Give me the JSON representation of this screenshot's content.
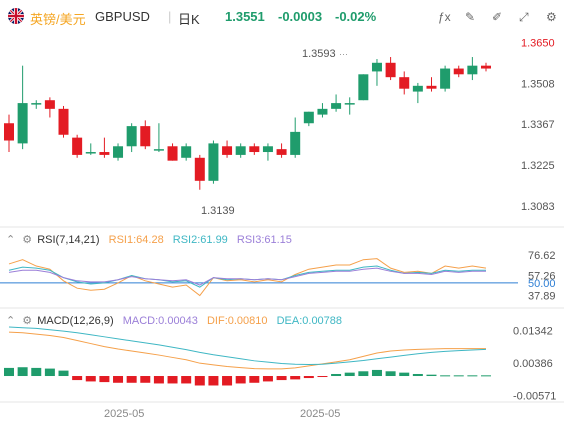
{
  "header": {
    "pair_name": "英镑/美元",
    "symbol": "GBPUSD",
    "timeframe": "日K",
    "price": "1.3551",
    "change": "-0.0003",
    "change_pct": "-0.02%",
    "flag_icon": "uk-flag-icon",
    "actions": [
      {
        "name": "indicator-icon",
        "glyph": "ƒx"
      },
      {
        "name": "draw-tools-icon",
        "glyph": "✎"
      },
      {
        "name": "brush-icon",
        "glyph": "✐"
      },
      {
        "name": "expand-icon",
        "glyph": "⤢"
      },
      {
        "name": "settings-icon",
        "glyph": "⚙"
      }
    ]
  },
  "colors": {
    "up": "#1f9c6c",
    "down": "#e31b23",
    "accent": "#f5a623",
    "rsi1": "#f5a04a",
    "rsi2": "#3fb7c4",
    "rsi3": "#9b7fd8",
    "level50": "#2f7fd4"
  },
  "price_axis": [
    "1.3650",
    "1.3508",
    "1.3367",
    "1.3225",
    "1.3083"
  ],
  "annotations": {
    "high": "1.3593",
    "low": "1.3139"
  },
  "rsi": {
    "title": "RSI(7,14,21)",
    "rsi1": "RSI1:64.28",
    "rsi2": "RSI2:61.99",
    "rsi3": "RSI3:61.15",
    "axis": [
      "76.62",
      "57.26",
      "50.00",
      "37.89"
    ]
  },
  "macd": {
    "title": "MACD(12,26,9)",
    "macd": "MACD:0.00043",
    "dif": "DIF:0.00810",
    "dea": "DEA:0.00788",
    "axis": [
      "0.01342",
      "0.00386",
      "-0.00571"
    ]
  },
  "time_axis": [
    "2025-05",
    "2025-05"
  ],
  "chart_data": {
    "type": "candlestick",
    "ylim": [
      1.302,
      1.368
    ],
    "candles": [
      {
        "o": 1.337,
        "h": 1.34,
        "l": 1.327,
        "c": 1.331
      },
      {
        "o": 1.33,
        "h": 1.357,
        "l": 1.328,
        "c": 1.344
      },
      {
        "o": 1.344,
        "h": 1.345,
        "l": 1.342,
        "c": 1.344
      },
      {
        "o": 1.345,
        "h": 1.346,
        "l": 1.339,
        "c": 1.342
      },
      {
        "o": 1.342,
        "h": 1.343,
        "l": 1.332,
        "c": 1.333
      },
      {
        "o": 1.332,
        "h": 1.333,
        "l": 1.325,
        "c": 1.326
      },
      {
        "o": 1.327,
        "h": 1.33,
        "l": 1.326,
        "c": 1.327
      },
      {
        "o": 1.327,
        "h": 1.332,
        "l": 1.325,
        "c": 1.326
      },
      {
        "o": 1.325,
        "h": 1.33,
        "l": 1.324,
        "c": 1.329
      },
      {
        "o": 1.329,
        "h": 1.337,
        "l": 1.327,
        "c": 1.336
      },
      {
        "o": 1.336,
        "h": 1.338,
        "l": 1.328,
        "c": 1.329
      },
      {
        "o": 1.328,
        "h": 1.337,
        "l": 1.327,
        "c": 1.328
      },
      {
        "o": 1.329,
        "h": 1.33,
        "l": 1.324,
        "c": 1.324
      },
      {
        "o": 1.325,
        "h": 1.33,
        "l": 1.324,
        "c": 1.329
      },
      {
        "o": 1.325,
        "h": 1.326,
        "l": 1.3139,
        "c": 1.317
      },
      {
        "o": 1.317,
        "h": 1.331,
        "l": 1.316,
        "c": 1.33
      },
      {
        "o": 1.329,
        "h": 1.331,
        "l": 1.325,
        "c": 1.326
      },
      {
        "o": 1.326,
        "h": 1.33,
        "l": 1.325,
        "c": 1.329
      },
      {
        "o": 1.329,
        "h": 1.33,
        "l": 1.326,
        "c": 1.327
      },
      {
        "o": 1.327,
        "h": 1.33,
        "l": 1.324,
        "c": 1.329
      },
      {
        "o": 1.328,
        "h": 1.33,
        "l": 1.325,
        "c": 1.326
      },
      {
        "o": 1.326,
        "h": 1.339,
        "l": 1.325,
        "c": 1.334
      },
      {
        "o": 1.337,
        "h": 1.341,
        "l": 1.336,
        "c": 1.341
      },
      {
        "o": 1.34,
        "h": 1.344,
        "l": 1.339,
        "c": 1.342
      },
      {
        "o": 1.342,
        "h": 1.347,
        "l": 1.341,
        "c": 1.344
      },
      {
        "o": 1.344,
        "h": 1.346,
        "l": 1.34,
        "c": 1.344
      },
      {
        "o": 1.345,
        "h": 1.354,
        "l": 1.345,
        "c": 1.354
      },
      {
        "o": 1.355,
        "h": 1.3593,
        "l": 1.35,
        "c": 1.358
      },
      {
        "o": 1.358,
        "h": 1.36,
        "l": 1.352,
        "c": 1.353
      },
      {
        "o": 1.353,
        "h": 1.355,
        "l": 1.347,
        "c": 1.349
      },
      {
        "o": 1.348,
        "h": 1.351,
        "l": 1.344,
        "c": 1.35
      },
      {
        "o": 1.35,
        "h": 1.353,
        "l": 1.348,
        "c": 1.349
      },
      {
        "o": 1.349,
        "h": 1.357,
        "l": 1.348,
        "c": 1.356
      },
      {
        "o": 1.356,
        "h": 1.357,
        "l": 1.353,
        "c": 1.354
      },
      {
        "o": 1.354,
        "h": 1.36,
        "l": 1.352,
        "c": 1.357
      },
      {
        "o": 1.357,
        "h": 1.358,
        "l": 1.355,
        "c": 1.356
      }
    ],
    "rsi": {
      "ylim": [
        30,
        85
      ],
      "rsi1": [
        68,
        72,
        66,
        63,
        52,
        45,
        43,
        44,
        50,
        57,
        52,
        49,
        46,
        48,
        38,
        55,
        52,
        53,
        51,
        53,
        51,
        58,
        63,
        65,
        67,
        67,
        72,
        73,
        64,
        60,
        61,
        59,
        66,
        64,
        66,
        64
      ],
      "rsi2": [
        62,
        65,
        64,
        62,
        55,
        51,
        49,
        50,
        53,
        57,
        54,
        53,
        51,
        52,
        46,
        55,
        53,
        54,
        53,
        54,
        53,
        57,
        60,
        61,
        62,
        62,
        65,
        66,
        62,
        59,
        60,
        59,
        62,
        61,
        62,
        62
      ],
      "rsi3": [
        60,
        62,
        62,
        60,
        55,
        52,
        51,
        51,
        53,
        56,
        54,
        53,
        52,
        53,
        48,
        55,
        54,
        54,
        53,
        54,
        53,
        56,
        59,
        60,
        61,
        61,
        63,
        64,
        61,
        59,
        59,
        58,
        61,
        60,
        61,
        61
      ]
    },
    "macd": {
      "ylim": [
        -0.0068,
        0.0148
      ],
      "dif": [
        0.013,
        0.0128,
        0.0124,
        0.012,
        0.0114,
        0.0105,
        0.0096,
        0.0087,
        0.008,
        0.0074,
        0.0068,
        0.0062,
        0.0055,
        0.0048,
        0.0038,
        0.0033,
        0.0028,
        0.0025,
        0.0022,
        0.0021,
        0.0021,
        0.0024,
        0.003,
        0.0036,
        0.0042,
        0.0048,
        0.0058,
        0.0068,
        0.0074,
        0.0077,
        0.0079,
        0.008,
        0.0081,
        0.0081,
        0.0081,
        0.0081
      ],
      "dea": [
        0.0145,
        0.0143,
        0.0141,
        0.0137,
        0.0133,
        0.0128,
        0.0122,
        0.0116,
        0.011,
        0.0104,
        0.0098,
        0.0092,
        0.0085,
        0.0078,
        0.007,
        0.0063,
        0.0057,
        0.0051,
        0.0045,
        0.0041,
        0.0037,
        0.0035,
        0.0034,
        0.0035,
        0.0038,
        0.0042,
        0.0046,
        0.0051,
        0.0056,
        0.0061,
        0.0066,
        0.007,
        0.0073,
        0.0075,
        0.0077,
        0.0079
      ],
      "hist": [
        0.0024,
        0.0026,
        0.0024,
        0.0022,
        0.0016,
        -0.0012,
        -0.0016,
        -0.0018,
        -0.002,
        -0.002,
        -0.002,
        -0.0022,
        -0.0022,
        -0.0022,
        -0.0028,
        -0.0028,
        -0.0028,
        -0.0022,
        -0.002,
        -0.0016,
        -0.0012,
        -0.001,
        -0.0006,
        -0.0002,
        0.0006,
        0.001,
        0.0014,
        0.0018,
        0.0014,
        0.001,
        0.0006,
        0.0004,
        0.0002,
        0.0002,
        0.0002,
        0.0002
      ]
    }
  }
}
